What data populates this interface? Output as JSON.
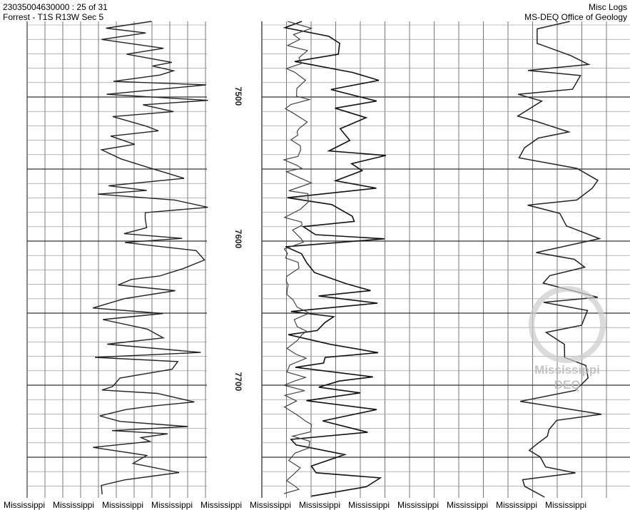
{
  "header": {
    "left": [
      "23035004630000 : 25 of 31",
      "Forrest - T1S R13W Sec 5"
    ],
    "right": [
      "Misc Logs",
      "MS-DEQ Office of Geology"
    ]
  },
  "depths": [
    "7500",
    "7600",
    "7700"
  ],
  "watermark": [
    "Mississippi",
    "DEQ"
  ],
  "footer": [
    "Mississippi",
    "Mississippi",
    "Mississippi",
    "Mississippi",
    "Mississippi",
    "Mississippi",
    "Mississippi",
    "Mississippi",
    "Mississippi",
    "Mississippi",
    "Mississippi",
    "Mississippi"
  ]
}
